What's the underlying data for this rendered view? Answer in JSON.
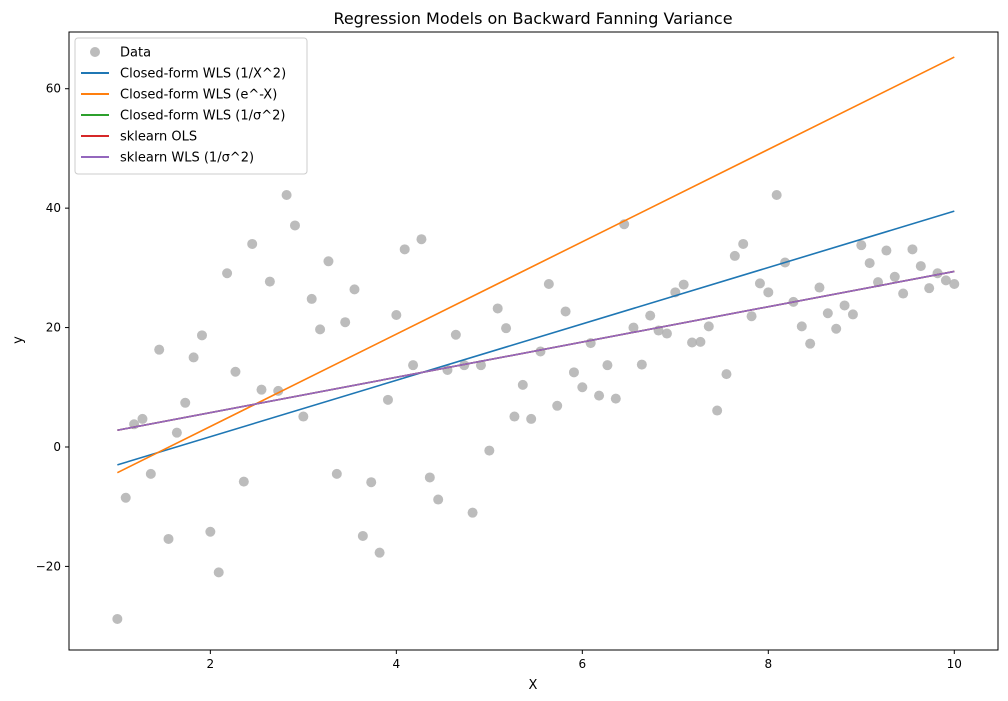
{
  "chart_data": {
    "type": "scatter",
    "title": "Regression Models on Backward Fanning Variance",
    "xlabel": "X",
    "ylabel": "y",
    "xlim": [
      0.48,
      10.47
    ],
    "ylim": [
      -34.0,
      69.5
    ],
    "xticks": [
      2,
      4,
      6,
      8,
      10
    ],
    "yticks": [
      -20,
      0,
      20,
      40,
      60
    ],
    "legend_position": "top-left",
    "grid": false,
    "scatter": {
      "name": "Data",
      "color": "#b0b0b0",
      "x": [
        1.0,
        1.09,
        1.18,
        1.27,
        1.36,
        1.45,
        1.55,
        1.64,
        1.73,
        1.82,
        1.91,
        2.0,
        2.09,
        2.18,
        2.27,
        2.36,
        2.45,
        2.55,
        2.64,
        2.73,
        2.82,
        2.91,
        3.0,
        3.09,
        3.18,
        3.27,
        3.36,
        3.45,
        3.55,
        3.64,
        3.73,
        3.82,
        3.91,
        4.0,
        4.09,
        4.18,
        4.27,
        4.36,
        4.45,
        4.55,
        4.64,
        4.73,
        4.82,
        4.91,
        5.0,
        5.09,
        5.18,
        5.27,
        5.36,
        5.45,
        5.55,
        5.64,
        5.73,
        5.82,
        5.91,
        6.0,
        6.09,
        6.18,
        6.27,
        6.36,
        6.45,
        6.55,
        6.64,
        6.73,
        6.82,
        6.91,
        7.0,
        7.09,
        7.18,
        7.27,
        7.36,
        7.45,
        7.55,
        7.64,
        7.73,
        7.82,
        7.91,
        8.0,
        8.09,
        8.18,
        8.27,
        8.36,
        8.45,
        8.55,
        8.64,
        8.73,
        8.82,
        8.91,
        9.0,
        9.09,
        9.18,
        9.27,
        9.36,
        9.45,
        9.55,
        9.64,
        9.73,
        9.82,
        9.91,
        10.0
      ],
      "y": [
        -28.8,
        -8.5,
        3.8,
        4.7,
        -4.5,
        16.3,
        -15.4,
        2.4,
        7.4,
        15.0,
        18.7,
        -14.2,
        -21.0,
        29.1,
        12.6,
        -5.8,
        34.0,
        9.6,
        27.7,
        9.4,
        42.2,
        37.1,
        5.1,
        24.8,
        19.7,
        31.1,
        -4.5,
        20.9,
        26.4,
        -14.9,
        -5.9,
        -17.7,
        7.9,
        22.1,
        33.1,
        13.7,
        34.8,
        -5.1,
        -8.8,
        12.9,
        18.8,
        13.7,
        -11.0,
        13.7,
        -0.6,
        23.2,
        19.9,
        5.1,
        10.4,
        4.7,
        16.0,
        27.3,
        6.9,
        22.7,
        12.5,
        10.0,
        17.4,
        8.6,
        13.7,
        8.1,
        37.3,
        20.0,
        13.8,
        22.0,
        19.5,
        19.0,
        25.9,
        27.2,
        17.5,
        17.6,
        20.2,
        6.1,
        12.2,
        32.0,
        34.0,
        21.9,
        27.4,
        25.9,
        42.2,
        30.9,
        24.3,
        20.2,
        17.3,
        26.7,
        22.4,
        19.8,
        23.7,
        22.2,
        33.8,
        30.8,
        27.6,
        32.9,
        28.5,
        25.7,
        33.1,
        30.3,
        26.6,
        29.1,
        27.9,
        27.3
      ]
    },
    "series": [
      {
        "name": "Closed-form WLS (1/X^2)",
        "color": "#1f77b4",
        "x": [
          1,
          10
        ],
        "y": [
          -3.0,
          39.5
        ]
      },
      {
        "name": "Closed-form WLS (e^-X)",
        "color": "#ff7f0e",
        "x": [
          1,
          10
        ],
        "y": [
          -4.3,
          65.3
        ]
      },
      {
        "name": "Closed-form WLS (1/σ^2)",
        "color": "#2ca02c",
        "x": [
          1,
          10
        ],
        "y": [
          2.8,
          29.4
        ]
      },
      {
        "name": "sklearn OLS",
        "color": "#d62728",
        "x": [
          1,
          10
        ],
        "y": [
          2.8,
          29.4
        ]
      },
      {
        "name": "sklearn WLS (1/σ^2)",
        "color": "#9467bd",
        "x": [
          1,
          10
        ],
        "y": [
          2.8,
          29.4
        ]
      }
    ]
  }
}
